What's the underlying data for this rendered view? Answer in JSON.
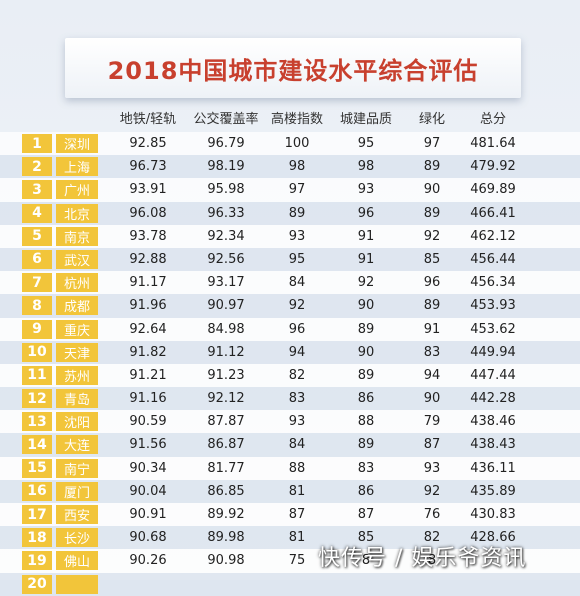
{
  "title": "2018中国城市建设水平综合评估",
  "headers": [
    "地铁/轻轨",
    "公交覆盖率",
    "高楼指数",
    "城建品质",
    "绿化",
    "总分"
  ],
  "rows": [
    {
      "rank": "1",
      "city": "深圳",
      "metro": "92.85",
      "bus": "96.79",
      "tower": "100",
      "quality": "95",
      "green": "97",
      "total": "481.64"
    },
    {
      "rank": "2",
      "city": "上海",
      "metro": "96.73",
      "bus": "98.19",
      "tower": "98",
      "quality": "98",
      "green": "89",
      "total": "479.92"
    },
    {
      "rank": "3",
      "city": "广州",
      "metro": "93.91",
      "bus": "95.98",
      "tower": "97",
      "quality": "93",
      "green": "90",
      "total": "469.89"
    },
    {
      "rank": "4",
      "city": "北京",
      "metro": "96.08",
      "bus": "96.33",
      "tower": "89",
      "quality": "96",
      "green": "89",
      "total": "466.41"
    },
    {
      "rank": "5",
      "city": "南京",
      "metro": "93.78",
      "bus": "92.34",
      "tower": "93",
      "quality": "91",
      "green": "92",
      "total": "462.12"
    },
    {
      "rank": "6",
      "city": "武汉",
      "metro": "92.88",
      "bus": "92.56",
      "tower": "95",
      "quality": "91",
      "green": "85",
      "total": "456.44"
    },
    {
      "rank": "7",
      "city": "杭州",
      "metro": "91.17",
      "bus": "93.17",
      "tower": "84",
      "quality": "92",
      "green": "96",
      "total": "456.34"
    },
    {
      "rank": "8",
      "city": "成都",
      "metro": "91.96",
      "bus": "90.97",
      "tower": "92",
      "quality": "90",
      "green": "89",
      "total": "453.93"
    },
    {
      "rank": "9",
      "city": "重庆",
      "metro": "92.64",
      "bus": "84.98",
      "tower": "96",
      "quality": "89",
      "green": "91",
      "total": "453.62"
    },
    {
      "rank": "10",
      "city": "天津",
      "metro": "91.82",
      "bus": "91.12",
      "tower": "94",
      "quality": "90",
      "green": "83",
      "total": "449.94"
    },
    {
      "rank": "11",
      "city": "苏州",
      "metro": "91.21",
      "bus": "91.23",
      "tower": "82",
      "quality": "89",
      "green": "94",
      "total": "447.44"
    },
    {
      "rank": "12",
      "city": "青岛",
      "metro": "91.16",
      "bus": "92.12",
      "tower": "83",
      "quality": "86",
      "green": "90",
      "total": "442.28"
    },
    {
      "rank": "13",
      "city": "沈阳",
      "metro": "90.59",
      "bus": "87.87",
      "tower": "93",
      "quality": "88",
      "green": "79",
      "total": "438.46"
    },
    {
      "rank": "14",
      "city": "大连",
      "metro": "91.56",
      "bus": "86.87",
      "tower": "84",
      "quality": "89",
      "green": "87",
      "total": "438.43"
    },
    {
      "rank": "15",
      "city": "南宁",
      "metro": "90.34",
      "bus": "81.77",
      "tower": "88",
      "quality": "83",
      "green": "93",
      "total": "436.11"
    },
    {
      "rank": "16",
      "city": "厦门",
      "metro": "90.04",
      "bus": "86.85",
      "tower": "81",
      "quality": "86",
      "green": "92",
      "total": "435.89"
    },
    {
      "rank": "17",
      "city": "西安",
      "metro": "90.91",
      "bus": "89.92",
      "tower": "87",
      "quality": "87",
      "green": "76",
      "total": "430.83"
    },
    {
      "rank": "18",
      "city": "长沙",
      "metro": "90.68",
      "bus": "89.98",
      "tower": "81",
      "quality": "85",
      "green": "82",
      "total": "428.66"
    },
    {
      "rank": "19",
      "city": "佛山",
      "metro": "90.26",
      "bus": "90.98",
      "tower": "75",
      "quality": "8",
      "green": "8",
      "total": ""
    },
    {
      "rank": "20",
      "city": "",
      "metro": "",
      "bus": "",
      "tower": "",
      "quality": "",
      "green": "",
      "total": ""
    }
  ],
  "watermark": "快传号 / 娱乐爷资讯"
}
